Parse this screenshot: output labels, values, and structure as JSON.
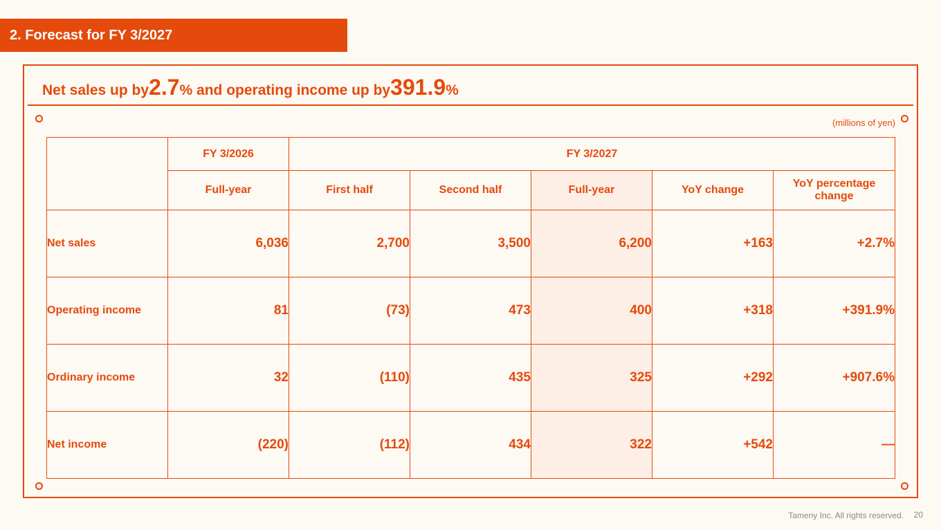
{
  "section_title": "2. Forecast for FY 3/2027",
  "headline": {
    "part1": "Net sales up by ",
    "value1": "2.7",
    "part2": "% and operating income up by ",
    "value2": "391.9",
    "part3": "%"
  },
  "unit_note": "(millions of yen)",
  "table": {
    "group_headers": {
      "fy2026": "FY 3/2026",
      "fy2027": "FY 3/2027"
    },
    "sub_headers": [
      "Full-year",
      "First half",
      "Second half",
      "Full-year",
      "YoY change",
      "YoY percentage change"
    ],
    "rows": [
      {
        "label": "Net sales",
        "values": [
          "6,036",
          "2,700",
          "3,500",
          "6,200",
          "+163",
          "+2.7%"
        ]
      },
      {
        "label": "Operating income",
        "values": [
          "81",
          "(73)",
          "473",
          "400",
          "+318",
          "+391.9%"
        ]
      },
      {
        "label": "Ordinary income",
        "values": [
          "32",
          "(110)",
          "435",
          "325",
          "+292",
          "+907.6%"
        ]
      },
      {
        "label": "Net income",
        "values": [
          "(220)",
          "(112)",
          "434",
          "322",
          "+542",
          "—"
        ]
      }
    ]
  },
  "footer": {
    "copyright": "Tameny Inc. All rights reserved.",
    "page": "20"
  },
  "colors": {
    "accent": "#e44a0c",
    "highlight": "#fdeee6",
    "background": "#fdf9f3"
  }
}
